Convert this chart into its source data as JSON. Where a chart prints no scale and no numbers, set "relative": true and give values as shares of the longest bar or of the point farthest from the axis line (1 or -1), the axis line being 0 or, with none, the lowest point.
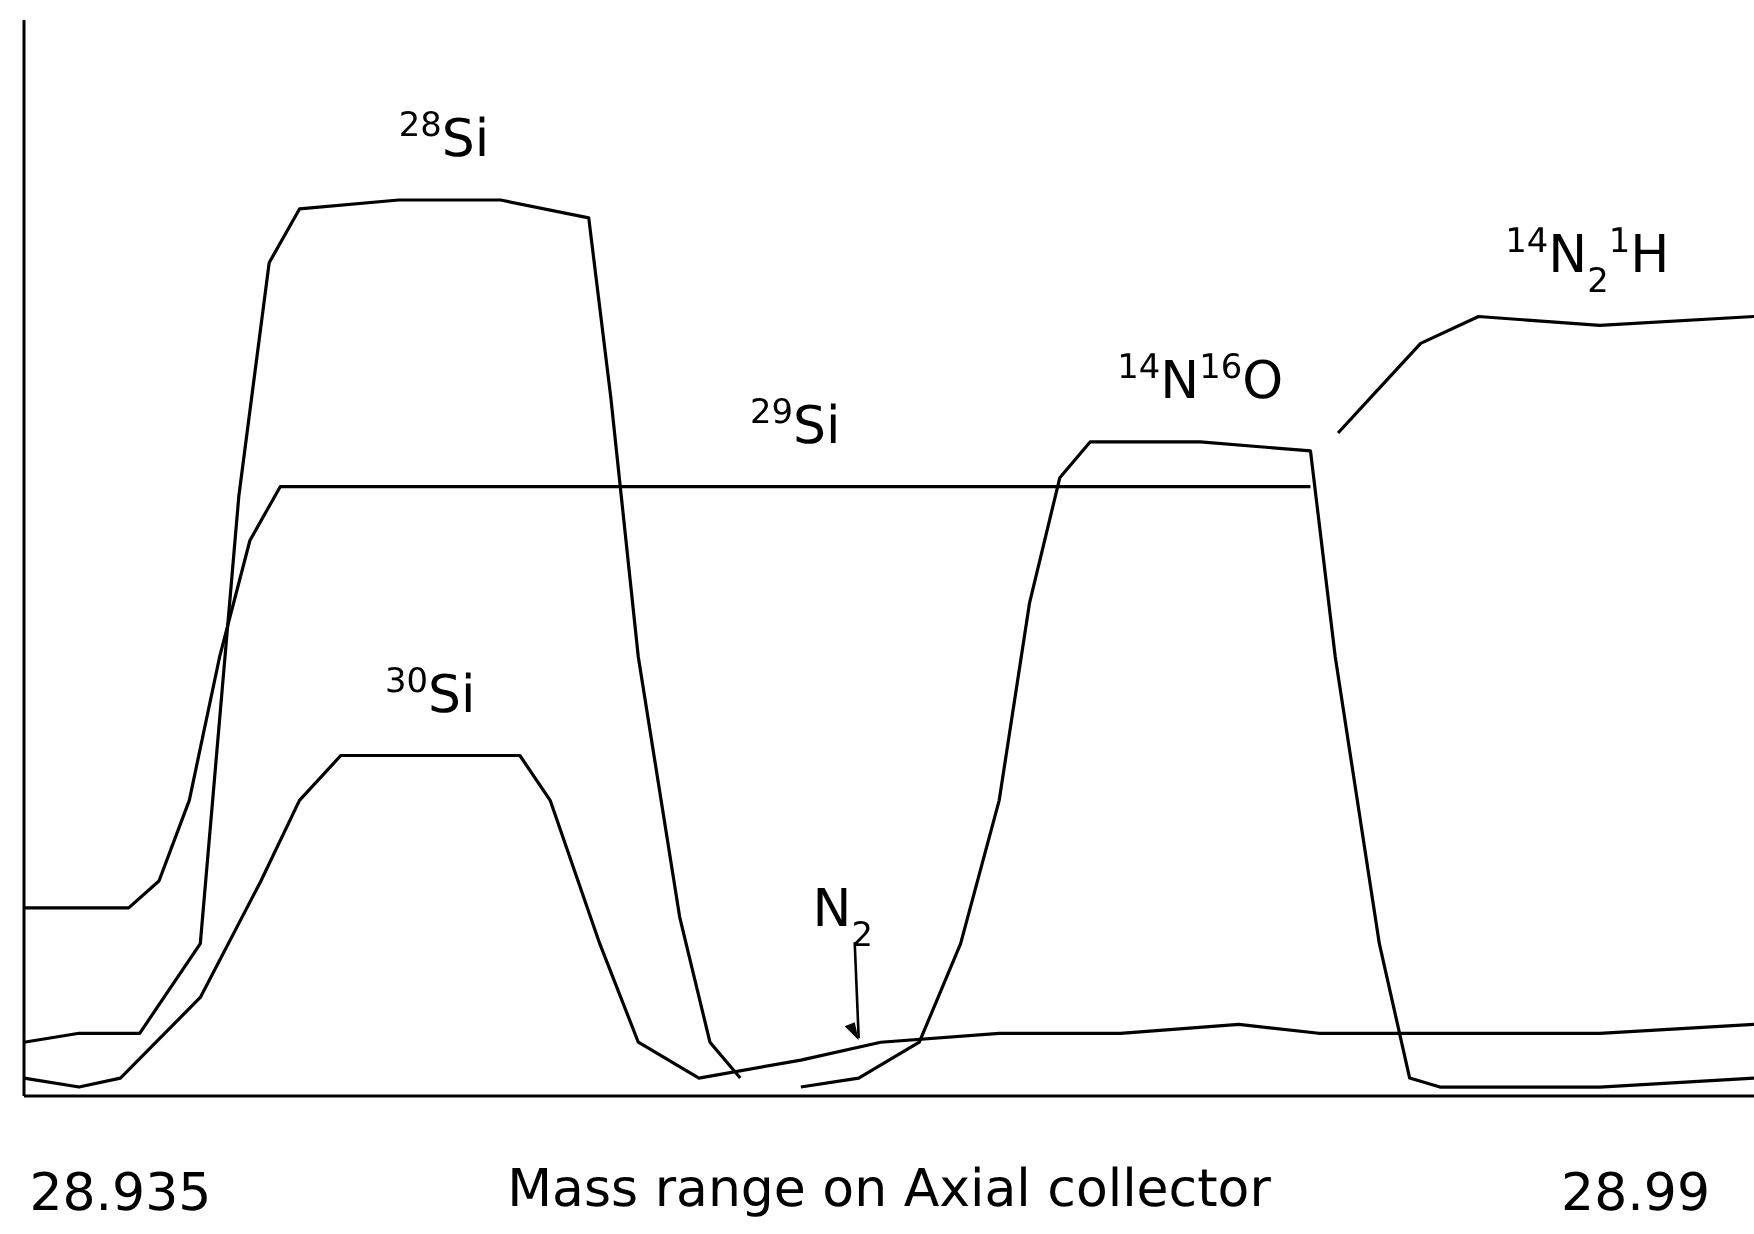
{
  "chart_data": {
    "type": "line",
    "relative": true,
    "xlabel": "Mass range on Axial collector",
    "xlim": [
      28.9315,
      28.9943
    ],
    "xticks": [
      28.935,
      28.99
    ],
    "grid": false,
    "series": [
      {
        "name": "$^{28}$Si",
        "color": "#000000",
        "x": [
          28.9315,
          28.9335,
          28.9357,
          28.9379,
          28.9393,
          28.9404,
          28.9415,
          28.9451,
          28.9488,
          28.952,
          28.9528,
          28.9538,
          28.9553,
          28.9564,
          28.9575
        ],
        "values": [
          0.06,
          0.07,
          0.07,
          0.17,
          0.67,
          0.93,
          0.99,
          1,
          1,
          0.98,
          0.78,
          0.49,
          0.2,
          0.06,
          0.02
        ]
      },
      {
        "name": "$^{14}$N$^{16}$O",
        "color": "#000000",
        "x": [
          28.9597,
          28.9618,
          28.964,
          28.9655,
          28.9669,
          28.968,
          28.9691,
          28.9702,
          28.9742,
          28.9782,
          28.9791,
          28.9807,
          28.9818,
          28.9829,
          28.9887,
          28.9943
        ],
        "values": [
          0.01,
          0.02,
          0.06,
          0.17,
          0.33,
          0.55,
          0.69,
          0.73,
          0.73,
          0.72,
          0.49,
          0.17,
          0.02,
          0.01,
          0.01,
          0.02
        ]
      },
      {
        "name": "$^{29}$Si",
        "color": "#000000",
        "x": [
          28.9315,
          28.9335,
          28.9353,
          28.9364,
          28.9375,
          28.9386,
          28.9397,
          28.9408,
          28.9451,
          28.9597,
          28.9742,
          28.9782
        ],
        "values": [
          0.21,
          0.21,
          0.21,
          0.24,
          0.33,
          0.49,
          0.62,
          0.68,
          0.68,
          0.68,
          0.68,
          0.68
        ]
      },
      {
        "name": "$^{14}$N$_{2}$$^{1}$H",
        "color": "#000000",
        "x": [
          28.9792,
          28.9807,
          28.9822,
          28.9843,
          28.9887,
          28.9943
        ],
        "values": [
          0.74,
          0.79,
          0.84,
          0.87,
          0.86,
          0.87
        ]
      },
      {
        "name": "$^{30}$Si",
        "color": "#000000",
        "x": [
          28.9315,
          28.9335,
          28.935,
          28.9379,
          28.9401,
          28.9415,
          28.943,
          28.9451,
          28.9495,
          28.9506,
          28.9524,
          28.9538,
          28.956,
          28.9597,
          28.9626,
          28.9669,
          28.9713,
          28.9756,
          28.9785,
          28.9814,
          28.9887,
          28.9943
        ],
        "values": [
          0.02,
          0.01,
          0.02,
          0.11,
          0.24,
          0.33,
          0.38,
          0.38,
          0.38,
          0.33,
          0.17,
          0.06,
          0.02,
          0.04,
          0.06,
          0.07,
          0.07,
          0.08,
          0.07,
          0.07,
          0.07,
          0.08
        ]
      }
    ],
    "annotations": [
      {
        "text": "N$_{2}$",
        "x": 28.9618,
        "y": 0.06
      }
    ]
  }
}
